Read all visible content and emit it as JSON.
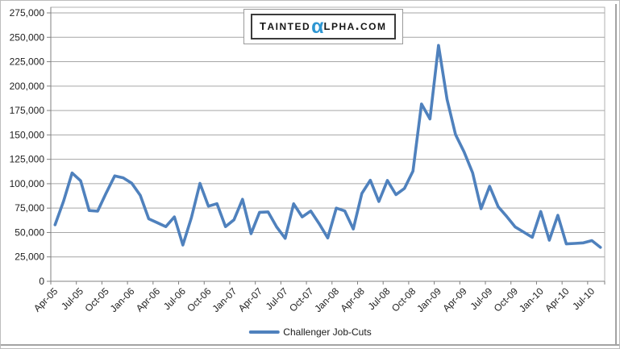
{
  "logo": {
    "part1": "Tainted",
    "alpha": "α",
    "part2": "lpha.com",
    "alpha_color": "#2e96d2",
    "text_color": "#161616"
  },
  "chart_data": {
    "type": "line",
    "title": "",
    "xlabel": "",
    "ylabel": "",
    "ylim": [
      0,
      275000
    ],
    "y_step": 25000,
    "grid": true,
    "legend_position": "bottom",
    "x_tick_every": 3,
    "categories": [
      "Apr-05",
      "May-05",
      "Jun-05",
      "Jul-05",
      "Aug-05",
      "Sep-05",
      "Oct-05",
      "Nov-05",
      "Dec-05",
      "Jan-06",
      "Feb-06",
      "Mar-06",
      "Apr-06",
      "May-06",
      "Jun-06",
      "Jul-06",
      "Aug-06",
      "Sep-06",
      "Oct-06",
      "Nov-06",
      "Dec-06",
      "Jan-07",
      "Feb-07",
      "Mar-07",
      "Apr-07",
      "May-07",
      "Jun-07",
      "Jul-07",
      "Aug-07",
      "Sep-07",
      "Oct-07",
      "Nov-07",
      "Dec-07",
      "Jan-08",
      "Feb-08",
      "Mar-08",
      "Apr-08",
      "May-08",
      "Jun-08",
      "Jul-08",
      "Aug-08",
      "Sep-08",
      "Oct-08",
      "Nov-08",
      "Dec-08",
      "Jan-09",
      "Feb-09",
      "Mar-09",
      "Apr-09",
      "May-09",
      "Jun-09",
      "Jul-09",
      "Aug-09",
      "Sep-09",
      "Oct-09",
      "Nov-09",
      "Dec-09",
      "Jan-10",
      "Feb-10",
      "Mar-10",
      "Apr-10",
      "May-10",
      "Jun-10",
      "Jul-10",
      "Aug-10"
    ],
    "series": [
      {
        "name": "Challenger Job-Cuts",
        "color": "#4F81BD",
        "values": [
          57861,
          82283,
          110996,
          102971,
          72500,
          71836,
          90500,
          108000,
          106000,
          100500,
          88000,
          64000,
          60000,
          56000,
          66000,
          37178,
          65278,
          100315,
          77000,
          79500,
          56000,
          62975,
          84014,
          48797,
          70672,
          71115,
          55726,
          44000,
          79459,
          66000,
          72000,
          59000,
          44416,
          74986,
          72091,
          53579,
          90015,
          103522,
          81755,
          103312,
          88736,
          95094,
          112884,
          181671,
          166348,
          241749,
          186350,
          150411,
          132590,
          111182,
          74393,
          97373,
          76456,
          66404,
          55679,
          50349,
          45094,
          71482,
          42090,
          67611,
          38326,
          38810,
          39358,
          41676,
          34768
        ]
      }
    ]
  },
  "style": {
    "grid_color": "#a6a6a6",
    "axis_color": "#808080",
    "plot_border_color": "#b0b0b0",
    "label_color": "#212121"
  }
}
